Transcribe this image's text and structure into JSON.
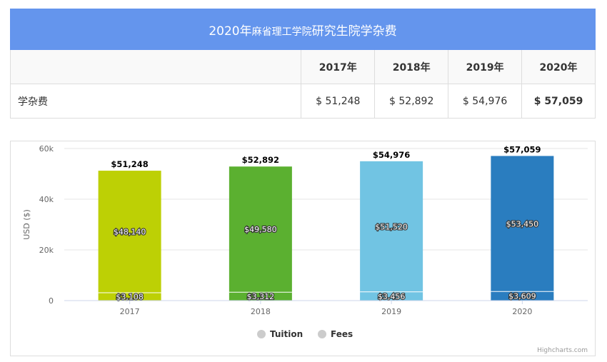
{
  "table": {
    "title_main": "2020年",
    "title_small": "麻省理工学院",
    "title_tail": "研究生院学杂费",
    "years": [
      "2017年",
      "2018年",
      "2019年",
      "2020年"
    ],
    "row_label": "学杂费",
    "row_values": [
      "$ 51,248",
      "$ 52,892",
      "$ 54,976",
      "$ 57,059"
    ]
  },
  "chart_data": {
    "type": "bar",
    "stacked": true,
    "categories": [
      "2017",
      "2018",
      "2019",
      "2020"
    ],
    "series": [
      {
        "name": "Tuition",
        "values": [
          48140,
          49580,
          51520,
          53450
        ],
        "labels": [
          "$48,140",
          "$49,580",
          "$51,520",
          "$53,450"
        ]
      },
      {
        "name": "Fees",
        "values": [
          3108,
          3312,
          3456,
          3609
        ],
        "labels": [
          "$3,108",
          "$3,312",
          "$3,456",
          "$3,609"
        ]
      }
    ],
    "totals": [
      51248,
      52892,
      54976,
      57059
    ],
    "total_labels": [
      "$51,248",
      "$52,892",
      "$54,976",
      "$57,059"
    ],
    "bar_colors": [
      "#bdd005",
      "#5bb030",
      "#71c4e3",
      "#2a7dbf"
    ],
    "ylabel": "USD ($)",
    "ylim": [
      0,
      60000
    ],
    "yticks": [
      0,
      20000,
      40000,
      60000
    ],
    "ytick_labels": [
      "0",
      "20k",
      "40k",
      "60k"
    ],
    "grid": true,
    "legend_position": "bottom-center",
    "legend_symbol_color": "#cccccc",
    "credits": "Highcharts.com"
  }
}
